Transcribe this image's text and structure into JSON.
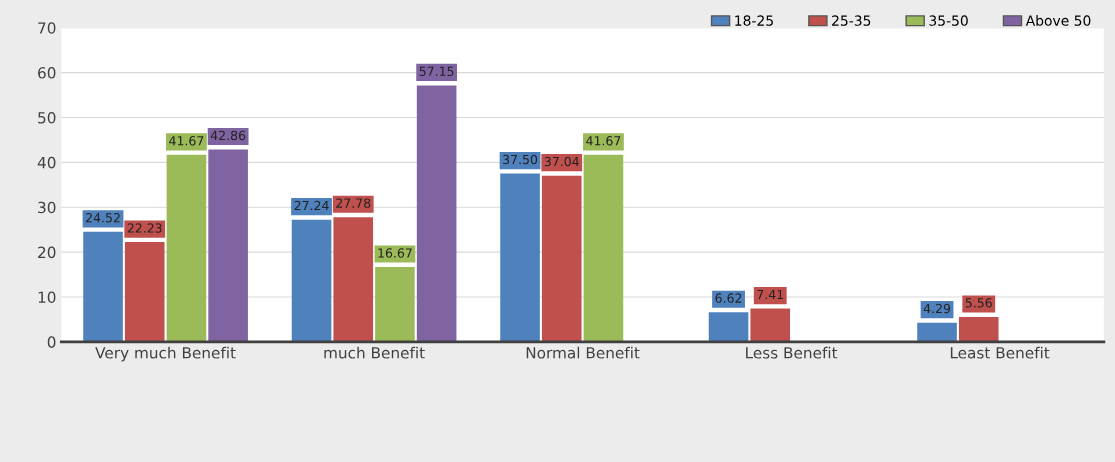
{
  "chart_data": {
    "type": "bar",
    "categories": [
      "Very much Benefit",
      "much Benefit",
      "Normal Benefit",
      "Less Benefit",
      "Least Benefit"
    ],
    "series": [
      {
        "name": "18-25",
        "color": "#4f81bd",
        "values": [
          24.52,
          27.24,
          37.5,
          6.62,
          4.29
        ],
        "value_labels": [
          "24.52",
          "27.24",
          "37.50",
          "6.62",
          "4.29"
        ]
      },
      {
        "name": "25-35",
        "color": "#c0504d",
        "values": [
          22.23,
          27.78,
          37.04,
          7.41,
          5.56
        ],
        "value_labels": [
          "22.23",
          "27.78",
          "37.04",
          "7.41",
          "5.56"
        ]
      },
      {
        "name": "35-50",
        "color": "#9bbb59",
        "values": [
          41.67,
          16.67,
          41.67,
          0,
          0
        ],
        "value_labels": [
          "41.67",
          "16.67",
          "41.67",
          null,
          null
        ]
      },
      {
        "name": "Above 50",
        "color": "#8064a2",
        "values": [
          42.86,
          57.15,
          0,
          0,
          0
        ],
        "value_labels": [
          "42.86",
          "57.15",
          null,
          null,
          null
        ]
      }
    ],
    "ylim": [
      0,
      70
    ],
    "yticks": [
      0,
      10,
      20,
      30,
      40,
      50,
      60,
      70
    ],
    "grid": "y",
    "legend": "top right"
  }
}
